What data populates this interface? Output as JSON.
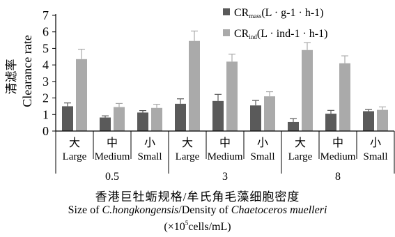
{
  "chart_data": {
    "type": "bar",
    "ylabel_zh": "清滤率",
    "ylabel_en": "Clearance rate",
    "ylim": [
      0,
      7
    ],
    "yticks": [
      "0",
      "1",
      "2",
      "3",
      "4",
      "5",
      "6",
      "7"
    ],
    "legend_position": "top-right",
    "series": [
      {
        "name_main": "CR",
        "name_sub": "mass",
        "name_unit": "(L · g-1 · h-1)",
        "color": "#5a5a5a",
        "values": [
          1.5,
          0.82,
          1.12,
          1.65,
          1.82,
          1.55,
          0.55,
          1.05,
          1.2
        ],
        "errors": [
          0.2,
          0.1,
          0.12,
          0.3,
          0.4,
          0.3,
          0.2,
          0.2,
          0.1
        ]
      },
      {
        "name_main": "CR",
        "name_sub": "ind",
        "name_unit": "(L · ind-1 · h-1)",
        "color": "#aaaaaa",
        "values": [
          4.35,
          1.45,
          1.4,
          5.45,
          4.2,
          2.1,
          4.9,
          4.1,
          1.28
        ],
        "errors": [
          0.6,
          0.22,
          0.22,
          0.6,
          0.45,
          0.28,
          0.45,
          0.45,
          0.18
        ]
      }
    ],
    "categories": [
      {
        "zh": "大",
        "en": "Large"
      },
      {
        "zh": "中",
        "en": "Medium"
      },
      {
        "zh": "小",
        "en": "Small"
      },
      {
        "zh": "大",
        "en": "Large"
      },
      {
        "zh": "中",
        "en": "Medium"
      },
      {
        "zh": "小",
        "en": "Small"
      },
      {
        "zh": "大",
        "en": "Large"
      },
      {
        "zh": "中",
        "en": "Medium"
      },
      {
        "zh": "小",
        "en": "Small"
      }
    ],
    "groups": [
      "0.5",
      "3",
      "8"
    ]
  },
  "caption": {
    "zh": "香港巨牡蛎规格/牟氏角毛藻细胞密度",
    "en_prefix": "Size of ",
    "en_species1": "C.hongkongensis",
    "en_middle": "/Density of ",
    "en_species2": "Chaetoceros muelleri",
    "unit_pre": "(×10",
    "unit_exp": "5",
    "unit_post": "cells/mL)"
  }
}
